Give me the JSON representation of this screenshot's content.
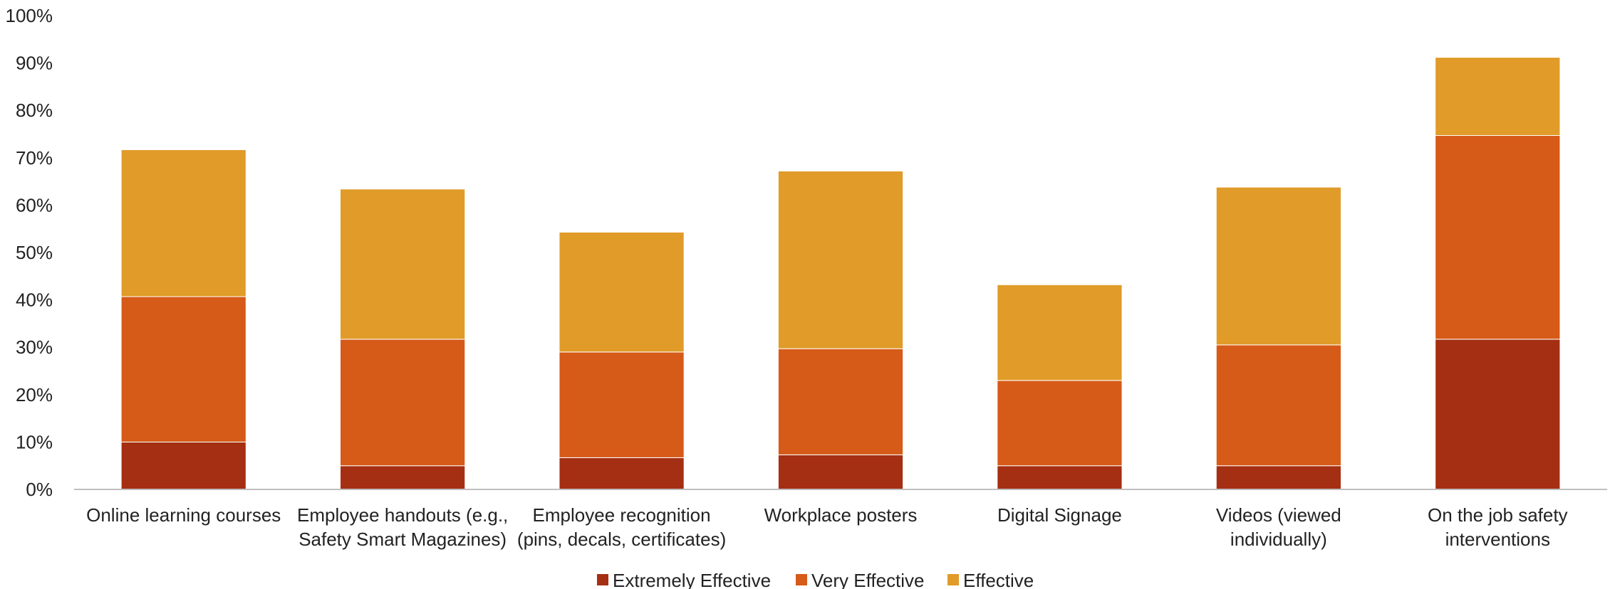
{
  "chart_data": {
    "type": "bar",
    "stacked": true,
    "categories": [
      [
        "Online learning courses"
      ],
      [
        "Employee handouts (e.g.,",
        "Safety Smart Magazines)"
      ],
      [
        "Employee recognition",
        "(pins, decals, certificates)"
      ],
      [
        "Workplace posters"
      ],
      [
        "Digital Signage"
      ],
      [
        "Videos (viewed",
        "individually)"
      ],
      [
        "On the job safety",
        "interventions"
      ]
    ],
    "series": [
      {
        "name": "Extremely Effective",
        "color": "#A52F12",
        "values": [
          10,
          5,
          6.7,
          7.3,
          5,
          5,
          31.7
        ]
      },
      {
        "name": "Very Effective",
        "color": "#D65A18",
        "values": [
          30.7,
          26.7,
          22.3,
          22.4,
          18,
          25.5,
          43
        ]
      },
      {
        "name": "Effective",
        "color": "#E09B28",
        "values": [
          31,
          31.7,
          25.3,
          37.5,
          20.2,
          33.3,
          16.5
        ]
      }
    ],
    "ylim": [
      0,
      100
    ],
    "yticks": [
      "0%",
      "10%",
      "20%",
      "30%",
      "40%",
      "50%",
      "60%",
      "70%",
      "80%",
      "90%",
      "100%"
    ],
    "grid": false,
    "legend_position": "bottom"
  }
}
